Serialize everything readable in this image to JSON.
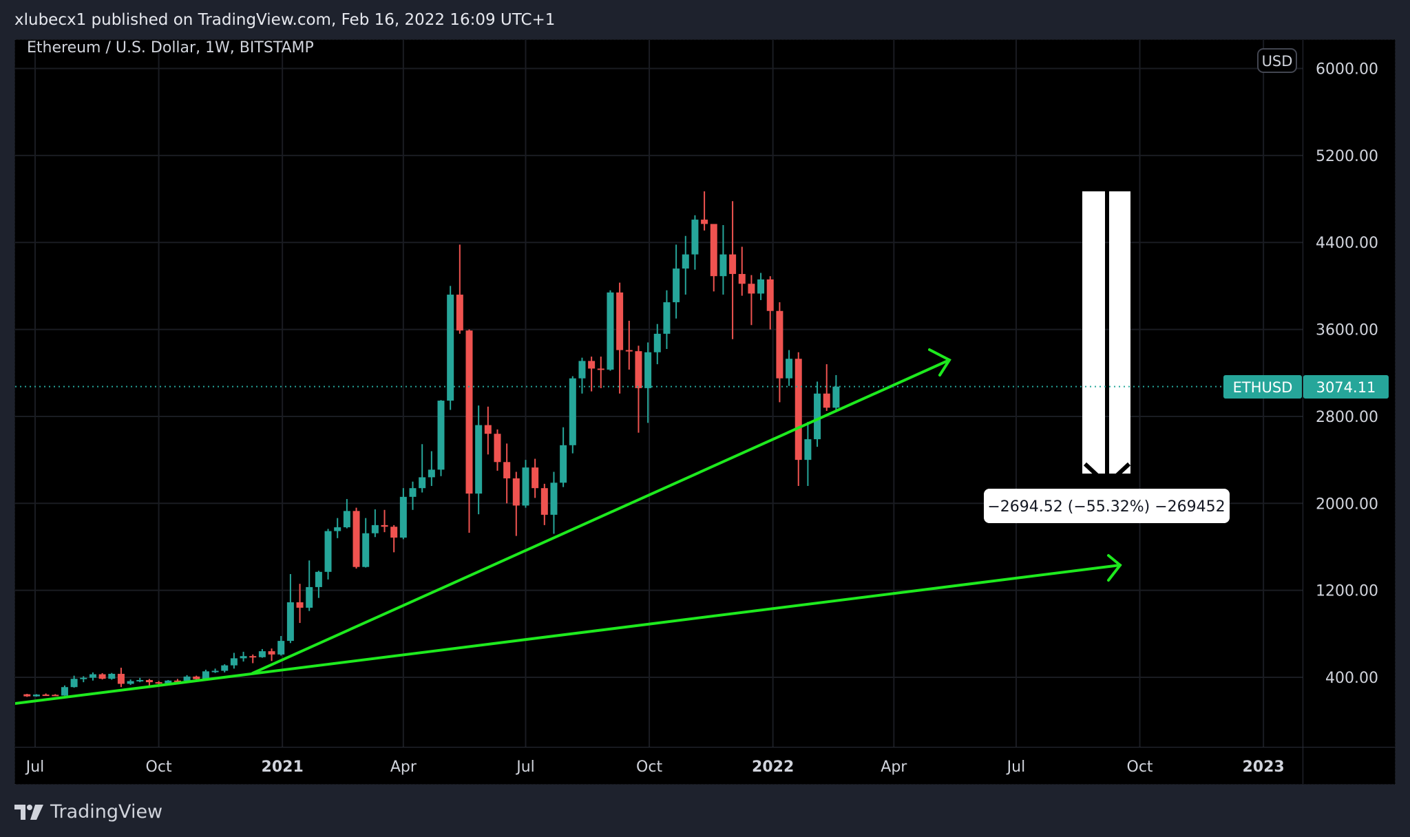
{
  "header": {
    "published": "xlubecx1 published on TradingView.com, Feb 16, 2022 16:09 UTC+1"
  },
  "footer": {
    "brand": "TradingView"
  },
  "chart_data": {
    "type": "candlestick",
    "title": "Ethereum / U.S. Dollar, 1W, BITSTAMP",
    "currency": "USD",
    "symbol": "ETHUSD",
    "last_price": "3074.11",
    "last_price_value": 3074.11,
    "colors": {
      "up": "#26a69a",
      "down": "#ef5350",
      "drawing": "#1eea1e"
    },
    "y_ticks": [
      "400.00",
      "1200.00",
      "2000.00",
      "2800.00",
      "3600.00",
      "4400.00",
      "5200.00",
      "6000.00"
    ],
    "y_tick_values": [
      400,
      1200,
      2000,
      2800,
      3600,
      4400,
      5200,
      6000
    ],
    "x_ticks": [
      {
        "label": "Jul",
        "date": "2020-07-01",
        "bold": false
      },
      {
        "label": "Oct",
        "date": "2020-10-01",
        "bold": false
      },
      {
        "label": "2021",
        "date": "2021-01-01",
        "bold": true
      },
      {
        "label": "Apr",
        "date": "2021-04-01",
        "bold": false
      },
      {
        "label": "Jul",
        "date": "2021-07-01",
        "bold": false
      },
      {
        "label": "Oct",
        "date": "2021-10-01",
        "bold": false
      },
      {
        "label": "2022",
        "date": "2022-01-01",
        "bold": true
      },
      {
        "label": "Apr",
        "date": "2022-04-01",
        "bold": false
      },
      {
        "label": "Jul",
        "date": "2022-07-01",
        "bold": false
      },
      {
        "label": "Oct",
        "date": "2022-10-01",
        "bold": false
      },
      {
        "label": "2023",
        "date": "2023-01-01",
        "bold": true
      }
    ],
    "first_week": "2020-06-22",
    "ohlc": [
      [
        244,
        248,
        220,
        225
      ],
      [
        225,
        245,
        222,
        241
      ],
      [
        241,
        251,
        235,
        239
      ],
      [
        239,
        245,
        229,
        232
      ],
      [
        232,
        325,
        230,
        310
      ],
      [
        310,
        415,
        305,
        386
      ],
      [
        386,
        410,
        355,
        396
      ],
      [
        396,
        445,
        370,
        428
      ],
      [
        428,
        438,
        380,
        387
      ],
      [
        387,
        440,
        378,
        432
      ],
      [
        432,
        488,
        310,
        340
      ],
      [
        340,
        380,
        330,
        365
      ],
      [
        365,
        395,
        355,
        375
      ],
      [
        375,
        385,
        310,
        355
      ],
      [
        355,
        365,
        335,
        345
      ],
      [
        345,
        375,
        340,
        370
      ],
      [
        370,
        385,
        355,
        368
      ],
      [
        368,
        420,
        365,
        407
      ],
      [
        407,
        415,
        370,
        383
      ],
      [
        383,
        470,
        375,
        455
      ],
      [
        455,
        480,
        440,
        460
      ],
      [
        460,
        520,
        445,
        510
      ],
      [
        510,
        625,
        480,
        575
      ],
      [
        575,
        635,
        545,
        595
      ],
      [
        595,
        610,
        530,
        585
      ],
      [
        585,
        660,
        580,
        640
      ],
      [
        640,
        665,
        550,
        610
      ],
      [
        610,
        780,
        600,
        735
      ],
      [
        735,
        1350,
        715,
        1090
      ],
      [
        1090,
        1260,
        900,
        1040
      ],
      [
        1040,
        1475,
        1010,
        1230
      ],
      [
        1230,
        1380,
        1130,
        1370
      ],
      [
        1370,
        1765,
        1300,
        1745
      ],
      [
        1745,
        1865,
        1680,
        1780
      ],
      [
        1780,
        2040,
        1770,
        1930
      ],
      [
        1930,
        1960,
        1400,
        1415
      ],
      [
        1415,
        1865,
        1410,
        1725
      ],
      [
        1725,
        1945,
        1690,
        1800
      ],
      [
        1800,
        1940,
        1735,
        1785
      ],
      [
        1785,
        1800,
        1550,
        1685
      ],
      [
        1685,
        2140,
        1670,
        2060
      ],
      [
        2060,
        2200,
        1940,
        2140
      ],
      [
        2140,
        2545,
        2100,
        2240
      ],
      [
        2240,
        2480,
        2160,
        2310
      ],
      [
        2310,
        2950,
        2250,
        2945
      ],
      [
        2945,
        4000,
        2860,
        3920
      ],
      [
        3920,
        4380,
        3560,
        3590
      ],
      [
        3590,
        3600,
        1730,
        2090
      ],
      [
        2090,
        2900,
        1900,
        2720
      ],
      [
        2720,
        2890,
        2450,
        2640
      ],
      [
        2640,
        2680,
        2300,
        2380
      ],
      [
        2380,
        2550,
        2000,
        2230
      ],
      [
        2230,
        2290,
        1700,
        1980
      ],
      [
        1980,
        2400,
        1960,
        2330
      ],
      [
        2330,
        2410,
        2050,
        2140
      ],
      [
        2140,
        2180,
        1800,
        1895
      ],
      [
        1895,
        2290,
        1720,
        2190
      ],
      [
        2190,
        2700,
        2150,
        2535
      ],
      [
        2535,
        3170,
        2460,
        3150
      ],
      [
        3150,
        3340,
        3010,
        3310
      ],
      [
        3310,
        3350,
        3030,
        3240
      ],
      [
        3240,
        3350,
        3060,
        3230
      ],
      [
        3230,
        3960,
        3220,
        3940
      ],
      [
        3940,
        4030,
        3010,
        3410
      ],
      [
        3410,
        3680,
        3230,
        3400
      ],
      [
        3400,
        3450,
        2650,
        3060
      ],
      [
        3060,
        3480,
        2740,
        3390
      ],
      [
        3390,
        3650,
        3280,
        3560
      ],
      [
        3560,
        3960,
        3420,
        3850
      ],
      [
        3850,
        4380,
        3700,
        4160
      ],
      [
        4160,
        4460,
        3920,
        4290
      ],
      [
        4290,
        4650,
        4150,
        4610
      ],
      [
        4610,
        4870,
        4510,
        4570
      ],
      [
        4570,
        4560,
        3950,
        4090
      ],
      [
        4090,
        4560,
        3920,
        4290
      ],
      [
        4290,
        4780,
        3510,
        4110
      ],
      [
        4110,
        4360,
        3910,
        4020
      ],
      [
        4020,
        4100,
        3640,
        3930
      ],
      [
        3930,
        4120,
        3870,
        4060
      ],
      [
        4060,
        4090,
        3600,
        3770
      ],
      [
        3770,
        3850,
        2930,
        3150
      ],
      [
        3150,
        3410,
        3080,
        3330
      ],
      [
        3330,
        3390,
        2160,
        2400
      ],
      [
        2400,
        2750,
        2160,
        2590
      ],
      [
        2590,
        3120,
        2520,
        3010
      ],
      [
        3010,
        3280,
        2850,
        2880
      ],
      [
        2880,
        3180,
        2860,
        3074.11
      ]
    ],
    "measure_label": "−2694.52 (−55.32%) −269452"
  }
}
